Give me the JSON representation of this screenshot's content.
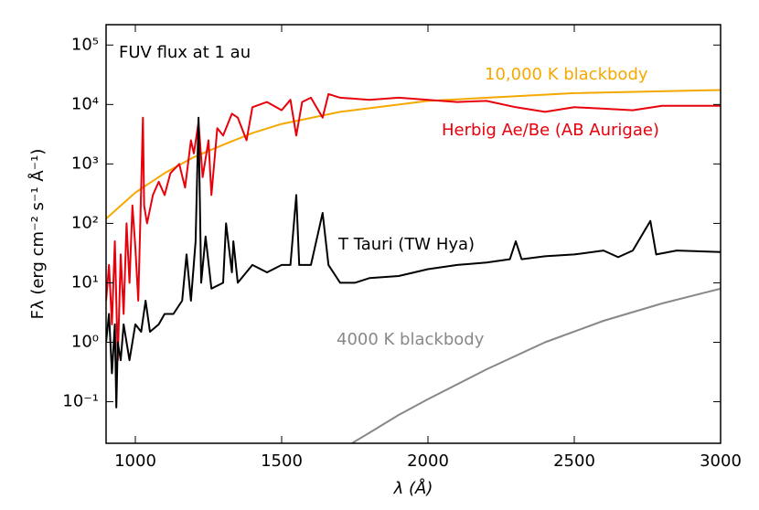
{
  "chart_data": {
    "type": "line",
    "title": "FUV flux at 1 au",
    "x_label": "λ (Å)",
    "y_label": "Fλ (erg cm⁻² s⁻¹ Å⁻¹)",
    "log_y": true,
    "xlim": [
      900,
      3000
    ],
    "xticks": [
      1000,
      1500,
      2000,
      2500,
      3000
    ],
    "ylim": [
      0.02,
      220000
    ],
    "yticks": [
      {
        "value": 0.1,
        "label": "10⁻¹"
      },
      {
        "value": 1,
        "label": "10⁰"
      },
      {
        "value": 10,
        "label": "10¹"
      },
      {
        "value": 100,
        "label": "10²"
      },
      {
        "value": 1000,
        "label": "10³"
      },
      {
        "value": 10000,
        "label": "10⁴"
      },
      {
        "value": 100000,
        "label": "10⁵"
      }
    ],
    "series": [
      {
        "name": "10,000 K blackbody",
        "color": "#f5a800",
        "x": [
          900,
          1000,
          1100,
          1200,
          1300,
          1400,
          1500,
          1700,
          2000,
          2500,
          3000
        ],
        "values": [
          120,
          330,
          700,
          1300,
          2100,
          3300,
          4700,
          7500,
          11500,
          15500,
          17500
        ]
      },
      {
        "name": "Herbig Ae/Be (AB Aurigae)",
        "color": "#e8000b",
        "x": [
          900,
          910,
          920,
          930,
          940,
          950,
          960,
          970,
          980,
          990,
          1000,
          1010,
          1020,
          1026,
          1030,
          1040,
          1060,
          1080,
          1100,
          1120,
          1150,
          1170,
          1190,
          1200,
          1216,
          1230,
          1250,
          1260,
          1280,
          1300,
          1330,
          1350,
          1380,
          1400,
          1450,
          1500,
          1530,
          1550,
          1570,
          1600,
          1640,
          1660,
          1700,
          1800,
          1900,
          2000,
          2100,
          2200,
          2300,
          2400,
          2500,
          2600,
          2700,
          2800,
          3000
        ],
        "values": [
          5,
          20,
          2,
          50,
          0.5,
          30,
          3,
          100,
          10,
          200,
          40,
          5,
          400,
          6000,
          200,
          100,
          300,
          500,
          300,
          700,
          1000,
          400,
          2500,
          1500,
          5000,
          600,
          2500,
          300,
          4000,
          3000,
          7000,
          6000,
          2500,
          9000,
          11000,
          8000,
          12000,
          3000,
          11000,
          13000,
          6000,
          15000,
          13000,
          12000,
          13000,
          12000,
          11000,
          11500,
          9000,
          7500,
          9000,
          8500,
          8000,
          9500,
          9500
        ]
      },
      {
        "name": "T Tauri (TW Hya)",
        "color": "#000000",
        "x": [
          900,
          910,
          920,
          930,
          935,
          940,
          950,
          960,
          980,
          1000,
          1020,
          1035,
          1050,
          1080,
          1100,
          1130,
          1160,
          1175,
          1190,
          1206,
          1216,
          1225,
          1240,
          1260,
          1300,
          1310,
          1330,
          1335,
          1350,
          1400,
          1450,
          1500,
          1530,
          1550,
          1560,
          1600,
          1640,
          1660,
          1700,
          1750,
          1800,
          1900,
          2000,
          2100,
          2200,
          2280,
          2300,
          2320,
          2400,
          2500,
          2600,
          2650,
          2700,
          2760,
          2780,
          2850,
          3000
        ],
        "values": [
          1,
          3,
          0.3,
          2,
          0.08,
          1,
          0.5,
          2,
          0.5,
          2,
          1.5,
          5,
          1.5,
          2,
          3,
          3,
          5,
          30,
          5,
          50,
          6000,
          10,
          60,
          8,
          10,
          100,
          15,
          50,
          10,
          20,
          15,
          20,
          20,
          300,
          20,
          20,
          150,
          20,
          10,
          10,
          12,
          13,
          17,
          20,
          22,
          25,
          50,
          25,
          28,
          30,
          35,
          27,
          35,
          110,
          30,
          35,
          33
        ]
      },
      {
        "name": "4000 K blackbody",
        "color": "#888888",
        "x": [
          1740,
          1800,
          1900,
          2000,
          2200,
          2400,
          2600,
          2800,
          3000
        ],
        "values": [
          0.02,
          0.03,
          0.06,
          0.11,
          0.35,
          1.0,
          2.3,
          4.5,
          8
        ]
      }
    ]
  }
}
